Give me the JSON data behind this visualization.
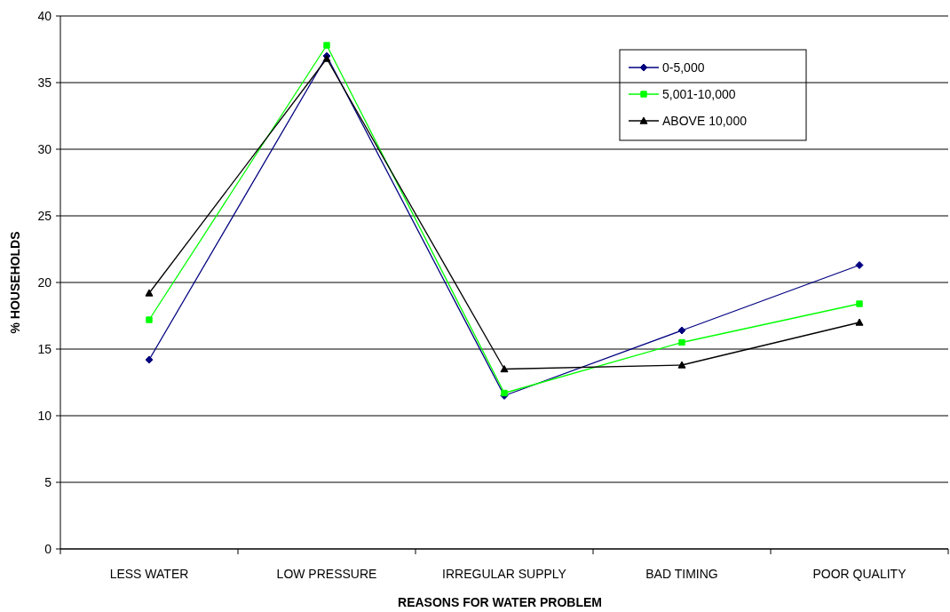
{
  "chart_data": {
    "type": "line",
    "xlabel": "REASONS FOR WATER PROBLEM",
    "ylabel": "% HOUSEHOLDS",
    "categories": [
      "LESS WATER",
      "LOW PRESSURE",
      "IRREGULAR SUPPLY",
      "BAD TIMING",
      "POOR QUALITY"
    ],
    "series": [
      {
        "name": "0-5,000",
        "color": "#000080",
        "marker": "diamond",
        "values": [
          14.2,
          37.0,
          11.5,
          16.4,
          21.3
        ]
      },
      {
        "name": "5,001-10,000",
        "color": "#00ff00",
        "marker": "square",
        "values": [
          17.2,
          37.8,
          11.7,
          15.5,
          18.4
        ]
      },
      {
        "name": "ABOVE 10,000",
        "color": "#000000",
        "marker": "triangle",
        "values": [
          19.2,
          36.8,
          13.5,
          13.8,
          17.0
        ]
      }
    ],
    "ylim": [
      0,
      40
    ],
    "yticks": [
      0,
      5,
      10,
      15,
      20,
      25,
      30,
      35,
      40
    ],
    "grid": "y",
    "legend": "top right",
    "line_style": "solid"
  }
}
